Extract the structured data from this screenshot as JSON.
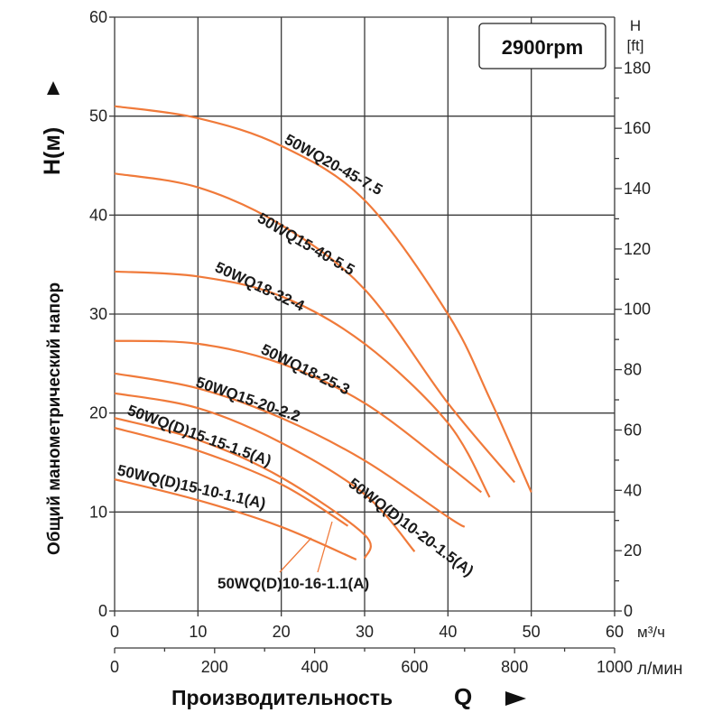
{
  "chart_data": {
    "type": "line",
    "rpm_label": "2900rpm",
    "ylabel": "Общий манометрический напор",
    "ylabel_symbol": "H(м)",
    "xlabel": "Производительность",
    "xlabel_symbol": "Q",
    "y_unit_right": "H",
    "y_unit_right_2": "[ft]",
    "x_unit_primary": "м³/ч",
    "x_unit_secondary": "л/мин",
    "xlim": [
      0,
      60
    ],
    "ylim": [
      0,
      60
    ],
    "y_ticks": [
      0,
      10,
      20,
      30,
      40,
      50,
      60
    ],
    "x_ticks_m3h": [
      0,
      10,
      20,
      30,
      40,
      50,
      60
    ],
    "x_ticks_lmin": [
      0,
      200,
      400,
      600,
      800,
      1000
    ],
    "x_lmin_max": 1000,
    "ft_ticks": [
      0,
      20,
      40,
      60,
      80,
      100,
      120,
      140,
      160,
      180
    ],
    "ft_per_m": 3.2808,
    "series": [
      {
        "name": "50WQ20-45-7.5",
        "points": [
          [
            0,
            51
          ],
          [
            10,
            49.8
          ],
          [
            20,
            47
          ],
          [
            30,
            41.5
          ],
          [
            40,
            30
          ],
          [
            45,
            21.5
          ],
          [
            50,
            12
          ]
        ]
      },
      {
        "name": "50WQ15-40-5.5",
        "points": [
          [
            0,
            44.2
          ],
          [
            10,
            42.8
          ],
          [
            20,
            39
          ],
          [
            30,
            32.5
          ],
          [
            40,
            21
          ],
          [
            48,
            13
          ]
        ]
      },
      {
        "name": "50WQ18-32-4",
        "points": [
          [
            0,
            34.3
          ],
          [
            10,
            33.8
          ],
          [
            20,
            31.8
          ],
          [
            30,
            27
          ],
          [
            40,
            19
          ],
          [
            45,
            11.5
          ]
        ]
      },
      {
        "name": "50WQ18-25-3",
        "points": [
          [
            0,
            27.3
          ],
          [
            10,
            27
          ],
          [
            20,
            25
          ],
          [
            30,
            21
          ],
          [
            40,
            14.7
          ],
          [
            44,
            12
          ]
        ]
      },
      {
        "name": "50WQ15-20-2.2",
        "points": [
          [
            0,
            24
          ],
          [
            10,
            22.5
          ],
          [
            20,
            19.5
          ],
          [
            30,
            15.2
          ],
          [
            40,
            9.5
          ],
          [
            42,
            8.5
          ]
        ]
      },
      {
        "name": "50WQ(D)10-20-1.5(A)",
        "points": [
          [
            0,
            22
          ],
          [
            10,
            20.5
          ],
          [
            20,
            17
          ],
          [
            30,
            11.8
          ],
          [
            36,
            6
          ]
        ]
      },
      {
        "name": "50WQ(D)15-15-1.5(A)",
        "points": [
          [
            0,
            19.5
          ],
          [
            10,
            17.3
          ],
          [
            20,
            13.5
          ],
          [
            30,
            7.7
          ],
          [
            30,
            5.3
          ]
        ]
      },
      {
        "name": "50WQ(D)10-16-1.1(A)",
        "points": [
          [
            0,
            18.5
          ],
          [
            10,
            16.2
          ],
          [
            20,
            12.8
          ],
          [
            28,
            8.6
          ]
        ]
      },
      {
        "name": "50WQ(D)15-10-1.1(A)",
        "points": [
          [
            0,
            13.3
          ],
          [
            10,
            11.2
          ],
          [
            20,
            8.5
          ],
          [
            29,
            5.2
          ]
        ]
      }
    ]
  }
}
